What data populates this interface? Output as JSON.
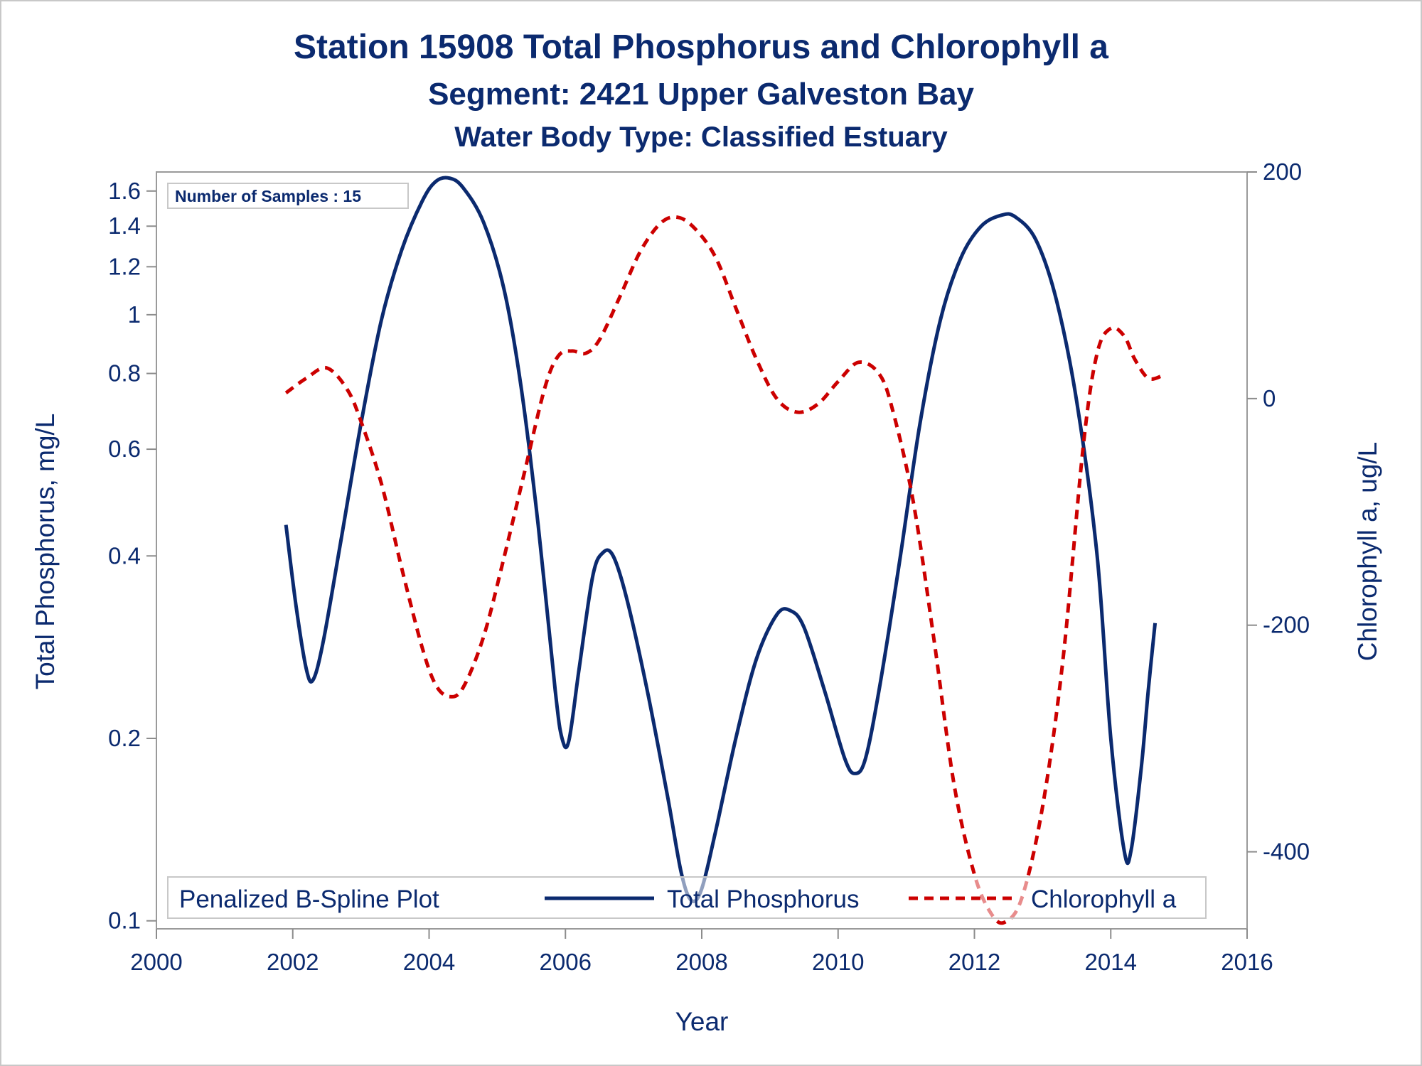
{
  "chart_data": {
    "type": "line",
    "title": "Station 15908  Total Phosphorus and Chlorophyll a",
    "subtitle": "Segment: 2421  Upper Galveston Bay",
    "subtitle2": "Water Body Type: Classified Estuary",
    "xlabel": "Year",
    "ylabel_left": "Total Phosphorus, mg/L",
    "ylabel_right": "Chlorophyll a, ug/L",
    "xlim": [
      2000,
      2016
    ],
    "x_ticks": [
      "2000",
      "2002",
      "2004",
      "2006",
      "2008",
      "2010",
      "2012",
      "2014",
      "2016"
    ],
    "y_left_scale": "log",
    "y_left_lim": [
      0.097,
      1.72
    ],
    "y_left_ticks": [
      "0.1",
      "0.2",
      "0.4",
      "0.6",
      "0.8",
      "1",
      "1.2",
      "1.4",
      "1.6"
    ],
    "y_right_scale": "linear",
    "y_right_lim": [
      -468,
      200
    ],
    "y_right_ticks": [
      "200",
      "0",
      "-200",
      "-400"
    ],
    "inset": "Number of Samples : 15",
    "legend": {
      "title": "Penalized B-Spline Plot",
      "placement": "bottom-inside",
      "entries": [
        "Total Phosphorus",
        "Chlorophyll a"
      ]
    },
    "grid": false,
    "series": [
      {
        "name": "Total Phosphorus",
        "axis": "left",
        "style": "solid",
        "color": "#0b2a6f",
        "points": [
          [
            2001.9,
            0.45
          ],
          [
            2002.05,
            0.33
          ],
          [
            2002.2,
            0.26
          ],
          [
            2002.3,
            0.25
          ],
          [
            2002.45,
            0.29
          ],
          [
            2002.7,
            0.42
          ],
          [
            2003.0,
            0.66
          ],
          [
            2003.3,
            0.98
          ],
          [
            2003.6,
            1.28
          ],
          [
            2003.9,
            1.54
          ],
          [
            2004.1,
            1.66
          ],
          [
            2004.3,
            1.68
          ],
          [
            2004.5,
            1.62
          ],
          [
            2004.8,
            1.42
          ],
          [
            2005.1,
            1.1
          ],
          [
            2005.35,
            0.76
          ],
          [
            2005.6,
            0.45
          ],
          [
            2005.85,
            0.24
          ],
          [
            2005.95,
            0.2
          ],
          [
            2006.05,
            0.198
          ],
          [
            2006.2,
            0.26
          ],
          [
            2006.4,
            0.37
          ],
          [
            2006.55,
            0.405
          ],
          [
            2006.7,
            0.4
          ],
          [
            2006.9,
            0.34
          ],
          [
            2007.2,
            0.24
          ],
          [
            2007.5,
            0.16
          ],
          [
            2007.7,
            0.12
          ],
          [
            2007.85,
            0.108
          ],
          [
            2008.0,
            0.113
          ],
          [
            2008.2,
            0.14
          ],
          [
            2008.5,
            0.2
          ],
          [
            2008.8,
            0.27
          ],
          [
            2009.1,
            0.32
          ],
          [
            2009.3,
            0.325
          ],
          [
            2009.5,
            0.305
          ],
          [
            2009.8,
            0.24
          ],
          [
            2010.1,
            0.185
          ],
          [
            2010.25,
            0.175
          ],
          [
            2010.4,
            0.185
          ],
          [
            2010.6,
            0.24
          ],
          [
            2010.9,
            0.39
          ],
          [
            2011.2,
            0.66
          ],
          [
            2011.5,
            0.98
          ],
          [
            2011.8,
            1.24
          ],
          [
            2012.1,
            1.4
          ],
          [
            2012.4,
            1.46
          ],
          [
            2012.6,
            1.45
          ],
          [
            2012.9,
            1.33
          ],
          [
            2013.2,
            1.06
          ],
          [
            2013.5,
            0.72
          ],
          [
            2013.8,
            0.4
          ],
          [
            2014.0,
            0.2
          ],
          [
            2014.2,
            0.13
          ],
          [
            2014.3,
            0.131
          ],
          [
            2014.45,
            0.18
          ],
          [
            2014.55,
            0.24
          ],
          [
            2014.65,
            0.31
          ]
        ]
      },
      {
        "name": "Chlorophyll a",
        "axis": "right",
        "style": "dashed",
        "color": "#cc0000",
        "points": [
          [
            2001.9,
            5
          ],
          [
            2002.2,
            18
          ],
          [
            2002.5,
            27
          ],
          [
            2002.8,
            8
          ],
          [
            2003.0,
            -20
          ],
          [
            2003.3,
            -75
          ],
          [
            2003.6,
            -150
          ],
          [
            2003.9,
            -220
          ],
          [
            2004.1,
            -253
          ],
          [
            2004.3,
            -263
          ],
          [
            2004.5,
            -255
          ],
          [
            2004.8,
            -210
          ],
          [
            2005.1,
            -140
          ],
          [
            2005.4,
            -65
          ],
          [
            2005.7,
            10
          ],
          [
            2005.9,
            38
          ],
          [
            2006.1,
            42
          ],
          [
            2006.3,
            40
          ],
          [
            2006.5,
            52
          ],
          [
            2006.8,
            90
          ],
          [
            2007.1,
            130
          ],
          [
            2007.4,
            155
          ],
          [
            2007.65,
            160
          ],
          [
            2007.9,
            150
          ],
          [
            2008.2,
            125
          ],
          [
            2008.5,
            80
          ],
          [
            2008.8,
            35
          ],
          [
            2009.1,
            0
          ],
          [
            2009.4,
            -12
          ],
          [
            2009.7,
            -5
          ],
          [
            2010.0,
            15
          ],
          [
            2010.3,
            32
          ],
          [
            2010.6,
            22
          ],
          [
            2010.8,
            -10
          ],
          [
            2011.1,
            -90
          ],
          [
            2011.4,
            -210
          ],
          [
            2011.7,
            -340
          ],
          [
            2012.0,
            -420
          ],
          [
            2012.25,
            -455
          ],
          [
            2012.45,
            -462
          ],
          [
            2012.7,
            -440
          ],
          [
            2013.0,
            -360
          ],
          [
            2013.3,
            -230
          ],
          [
            2013.6,
            -40
          ],
          [
            2013.8,
            40
          ],
          [
            2014.0,
            62
          ],
          [
            2014.2,
            55
          ],
          [
            2014.35,
            35
          ],
          [
            2014.55,
            18
          ],
          [
            2014.75,
            20
          ]
        ]
      }
    ]
  }
}
